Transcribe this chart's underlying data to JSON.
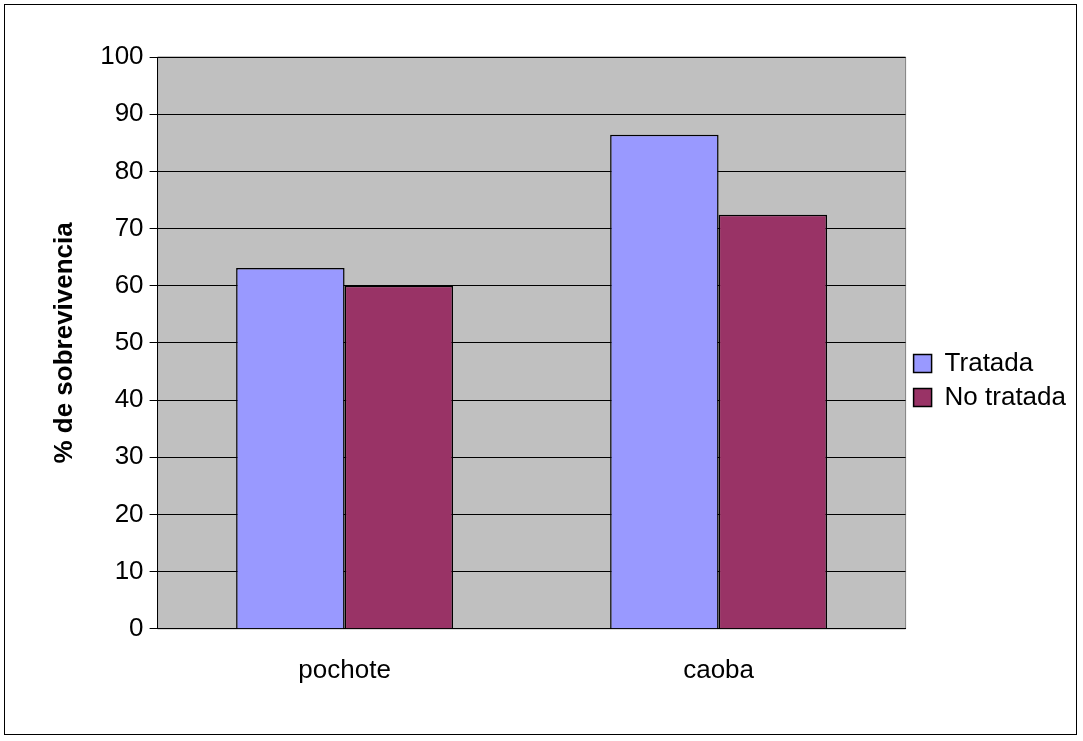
{
  "chart_data": {
    "type": "bar",
    "ylabel": "% de sobrevivencia",
    "categories": [
      "pochote",
      "caoba"
    ],
    "series": [
      {
        "name": "Tratada",
        "color": "#9999ff",
        "values": [
          63.1,
          86.4
        ]
      },
      {
        "name": "No tratada",
        "color": "#993366",
        "values": [
          60,
          72.4
        ]
      }
    ],
    "ylim": [
      0,
      100
    ],
    "yticks": [
      0,
      10,
      20,
      30,
      40,
      50,
      60,
      70,
      80,
      90,
      100
    ],
    "grid": "y",
    "legend": "right"
  }
}
